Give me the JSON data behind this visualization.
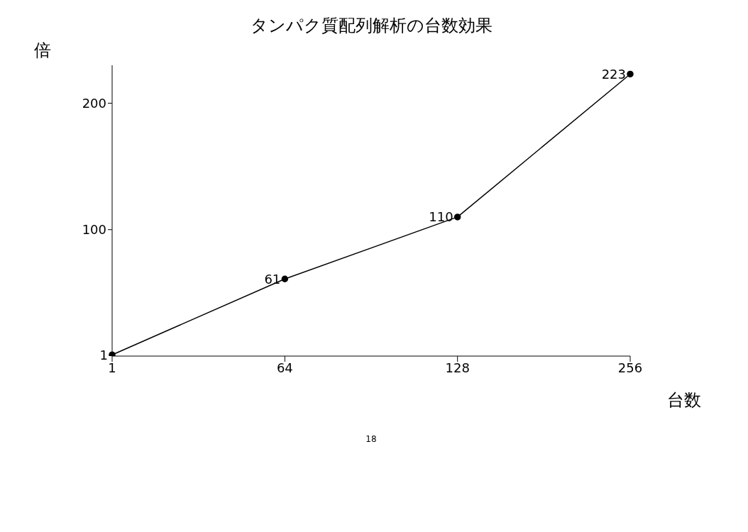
{
  "chart_data": {
    "type": "line",
    "title": "タンパク質配列解析の台数効果",
    "xlabel": "台数",
    "ylabel": "倍",
    "categories": [
      "1",
      "64",
      "128",
      "256"
    ],
    "series": [
      {
        "color": "#000000",
        "values": [
          1,
          61,
          110,
          223
        ]
      }
    ],
    "ylim": [
      0,
      230
    ],
    "yticks": [
      100,
      200
    ],
    "data_labels": true,
    "marker": "circle",
    "line_style": "solid",
    "annotations": [
      "18"
    ]
  }
}
